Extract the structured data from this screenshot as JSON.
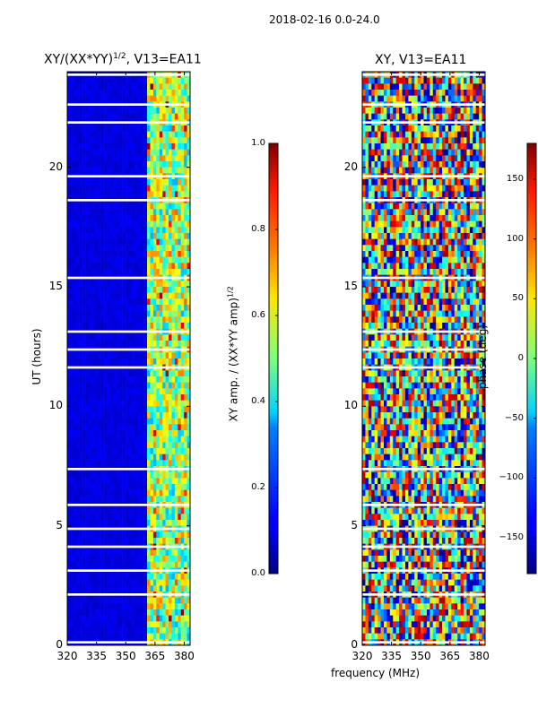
{
  "figure": {
    "suptitle": "2018-02-16 0.0-24.0",
    "common_xlabel": "frequency (MHz)"
  },
  "chart_data": [
    {
      "type": "heatmap",
      "title": "XY/(XX*YY)",
      "title_exponent": "1/2",
      "title_suffix": ", V13=EA11",
      "ylabel": "UT (hours)",
      "xlabel": "",
      "x_ticks": [
        320,
        335,
        350,
        365,
        380
      ],
      "y_ticks": [
        0,
        5,
        10,
        15,
        20
      ],
      "xlim": [
        320,
        383
      ],
      "ylim": [
        0,
        24
      ],
      "colormap": "jet",
      "colorbar": {
        "label": "XY amp. / (XX*YY amp)",
        "label_exponent": "1/2",
        "ticks": [
          "0.0",
          "0.2",
          "0.4",
          "0.6",
          "0.8",
          "1.0"
        ],
        "vmin": 0.0,
        "vmax": 1.0
      }
    },
    {
      "type": "heatmap",
      "title": "XY, V13=EA11",
      "ylabel": "",
      "xlabel": "frequency (MHz)",
      "x_ticks": [
        320,
        335,
        350,
        365,
        380
      ],
      "y_ticks": [
        0,
        5,
        10,
        15,
        20
      ],
      "xlim": [
        320,
        383
      ],
      "ylim": [
        0,
        24
      ],
      "colormap": "jet",
      "colorbar": {
        "label": "phase (deg)",
        "ticks": [
          "−150",
          "−100",
          "−50",
          "0",
          "50",
          "100",
          "150"
        ],
        "tick_values": [
          -150,
          -100,
          -50,
          0,
          50,
          100,
          150
        ],
        "vmin": -180,
        "vmax": 180
      }
    }
  ],
  "colors": {
    "jet_low": "#00007f",
    "jet_high": "#7f0000",
    "gap": "#ffffff"
  }
}
